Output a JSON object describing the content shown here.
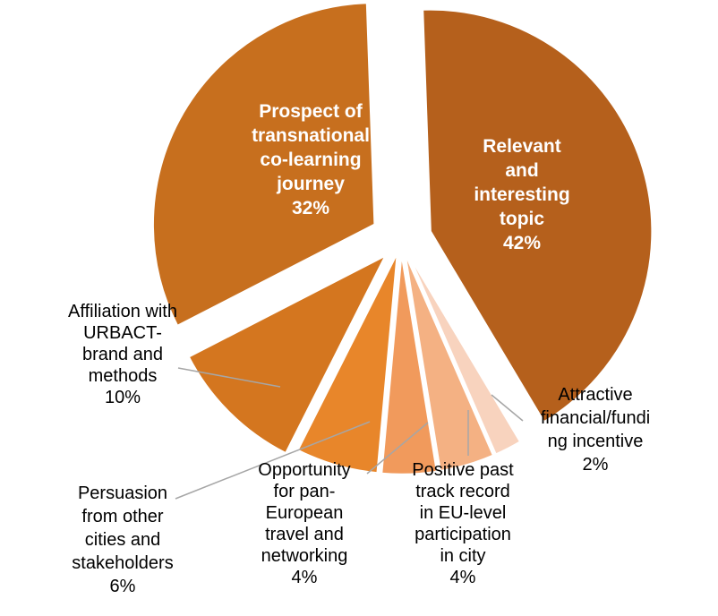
{
  "chart_data": {
    "type": "pie",
    "title": "",
    "slices": [
      {
        "label": "Relevant and interesting topic",
        "lines": [
          "Relevant",
          "and",
          "interesting",
          "topic"
        ],
        "value": 42,
        "value_label": "42%",
        "color": "#b5601c",
        "label_inside": true
      },
      {
        "label": "Attractive financial/funding incentive",
        "lines": [
          "Attractive",
          "financial/fundi",
          "ng incentive"
        ],
        "value": 2,
        "value_label": "2%",
        "color": "#f8d3be",
        "label_inside": false
      },
      {
        "label": "Positive past track record in EU-level participation in city",
        "lines": [
          "Positive past",
          "track record",
          "in EU-level",
          "participation",
          "in city"
        ],
        "value": 4,
        "value_label": "4%",
        "color": "#f4b183",
        "label_inside": false
      },
      {
        "label": "Opportunity for pan-European travel and networking",
        "lines": [
          "Opportunity",
          "for pan-",
          "European",
          "travel and",
          "networking"
        ],
        "value": 4,
        "value_label": "4%",
        "color": "#f19a5c",
        "label_inside": false
      },
      {
        "label": "Persuasion from other cities and stakeholders",
        "lines": [
          "Persuasion",
          "from other",
          "cities and",
          "stakeholders"
        ],
        "value": 6,
        "value_label": "6%",
        "color": "#e8862a",
        "label_inside": false
      },
      {
        "label": "Affiliation with URBACT-brand and methods",
        "lines": [
          "Affiliation with",
          "URBACT-",
          "brand and",
          "methods"
        ],
        "value": 10,
        "value_label": "10%",
        "color": "#d4761f",
        "label_inside": false
      },
      {
        "label": "Prospect of transnational co-learning journey",
        "lines": [
          "Prospect of",
          "transnational",
          "co-learning",
          "journey"
        ],
        "value": 32,
        "value_label": "32%",
        "color": "#c76f1e",
        "label_inside": true
      }
    ]
  }
}
